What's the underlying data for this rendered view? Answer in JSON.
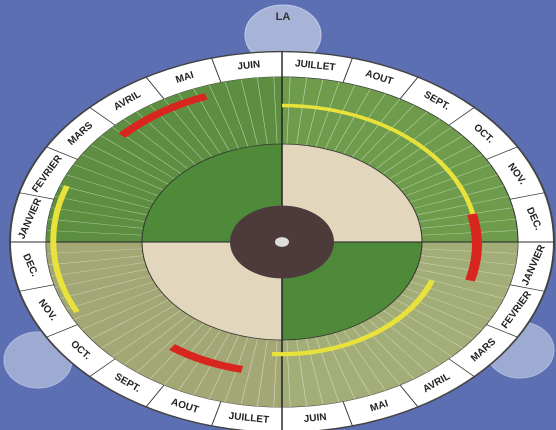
{
  "tab_label": "LA",
  "outer_ring": {
    "upper_months": [
      "JANVIER",
      "FEVRIER",
      "MARS",
      "AVRIL",
      "MAI",
      "JUIN",
      "JUILLET",
      "AOUT",
      "SEPT.",
      "OCT.",
      "NOV.",
      "DEC."
    ],
    "lower_months": [
      "JANVIER",
      "FEVRIER",
      "MARS",
      "AVRIL",
      "MAI",
      "JUIN",
      "JUILLET",
      "AOUT",
      "SEPT.",
      "OCT.",
      "NOV.",
      "DEC."
    ]
  }
}
